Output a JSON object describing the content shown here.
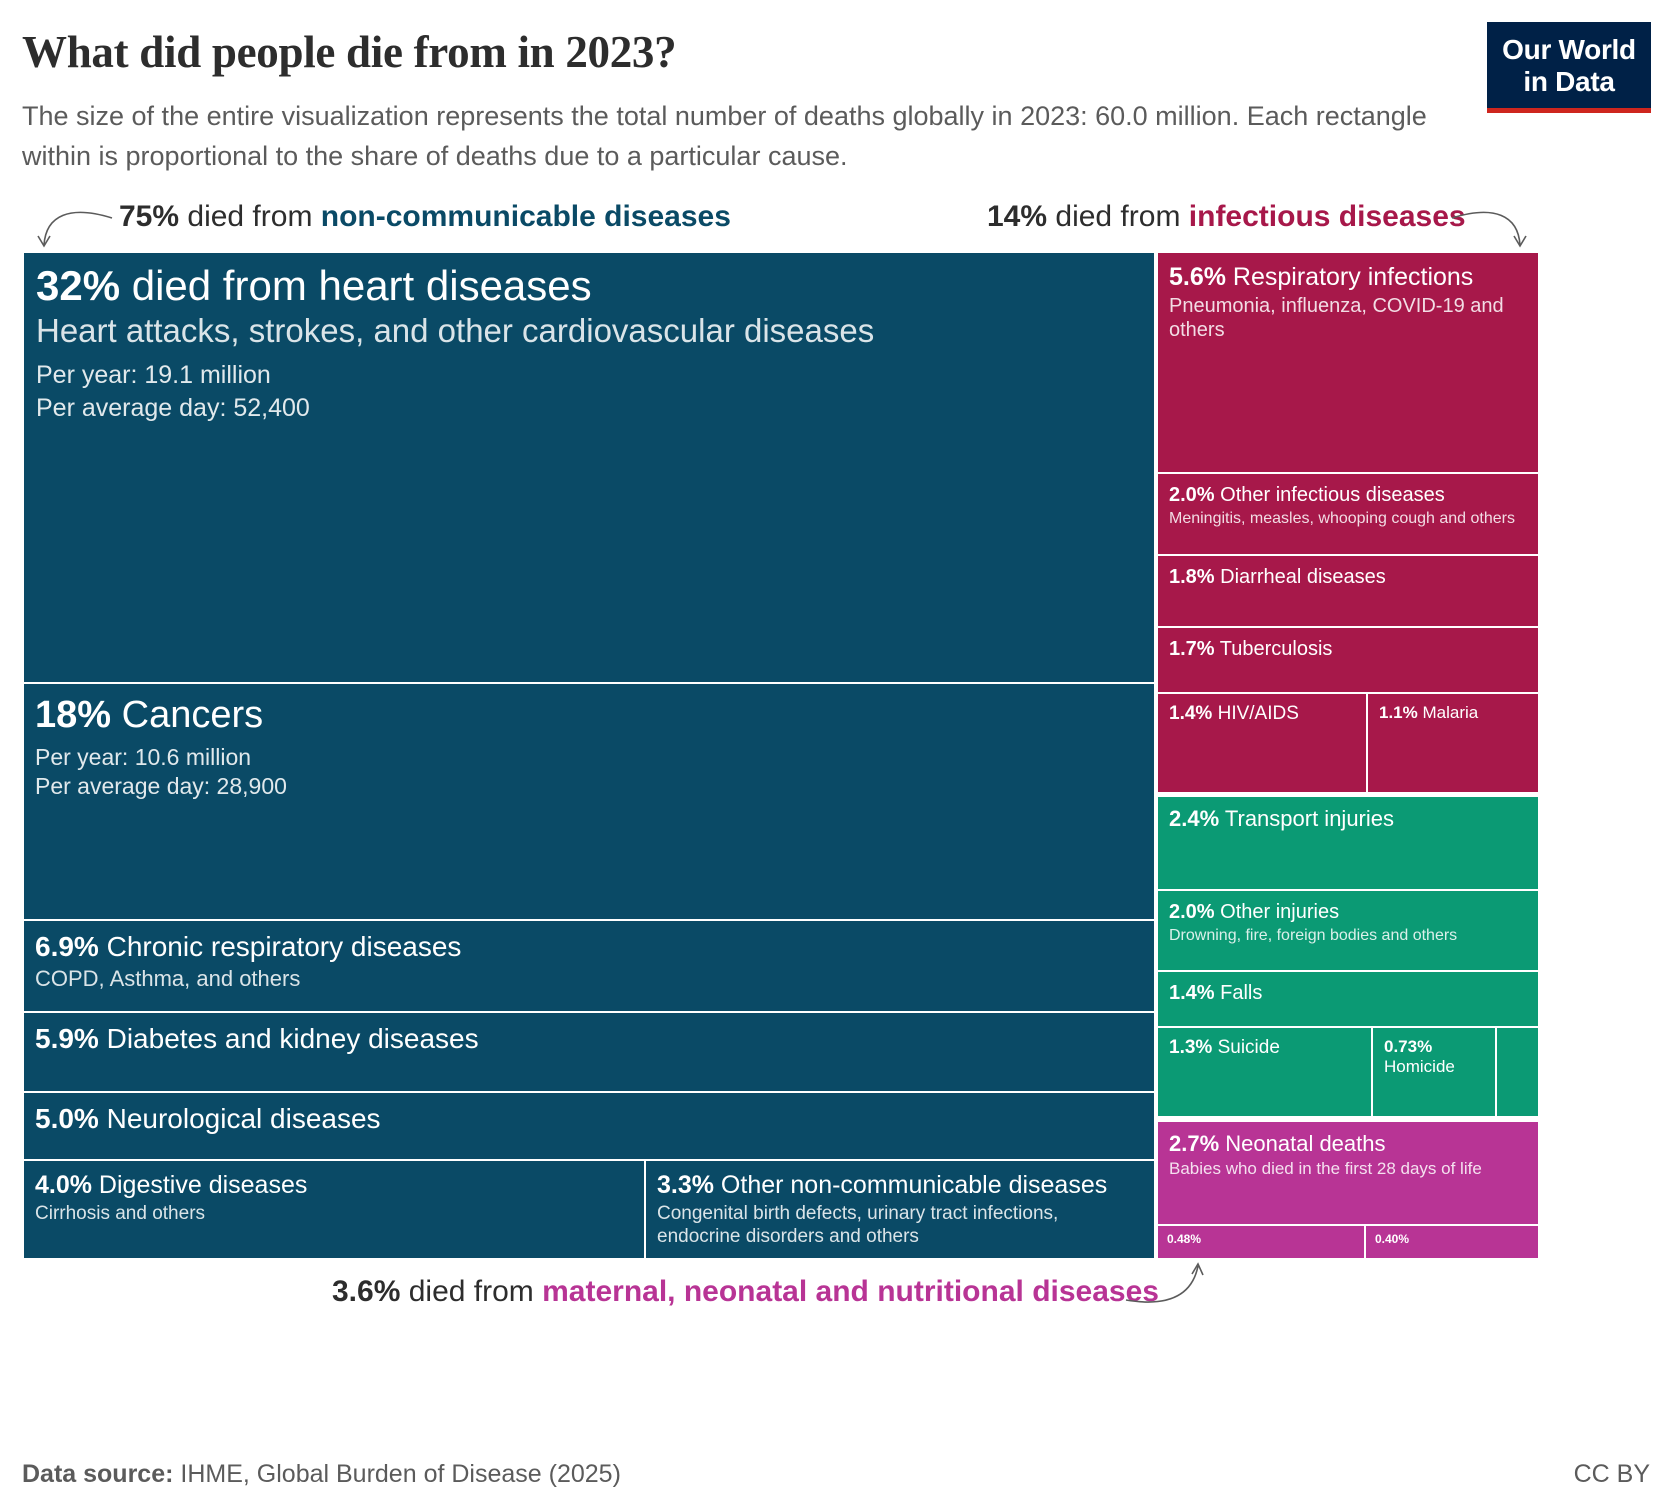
{
  "header": {
    "title": "What did people die from in 2023?",
    "subtitle": "The size of the entire visualization represents the total number of deaths globally in 2023: 60.0 million. Each rectangle within is proportional to the share of deaths due to a particular cause.",
    "logo_line1": "Our World",
    "logo_line2": "in Data"
  },
  "annotations": {
    "ncd": {
      "pct": "75%",
      "mid": " died from ",
      "cat": "non-communicable diseases"
    },
    "inf": {
      "pct": "14%",
      "mid": " died from ",
      "cat": "infectious diseases"
    },
    "mat": {
      "pct": "3.6%",
      "mid": " died from ",
      "cat": "maternal, neonatal and nutritional diseases"
    }
  },
  "footer": {
    "source_label": "Data source:",
    "source_text": " IHME, Global Burden of Disease (2025)",
    "license": "CC BY"
  },
  "colors": {
    "ncd": "#0a4a66",
    "infectious": "#a7184a",
    "injuries": "#0b9a74",
    "maternal": "#b83495",
    "ncd_text": "#0a4a66",
    "infectious_text": "#a7184a",
    "maternal_text": "#b83495"
  },
  "chart_data": {
    "type": "treemap",
    "total_deaths": "60.0 million",
    "groups": [
      {
        "name": "non-communicable diseases",
        "share_pct": 75
      },
      {
        "name": "infectious diseases",
        "share_pct": 14
      },
      {
        "name": "maternal, neonatal and nutritional diseases",
        "share_pct": 3.6
      }
    ],
    "cells": [
      {
        "group": "ncd",
        "pct": "32%",
        "label": " died from heart diseases",
        "desc": "Heart attacks, strokes, and other cardiovascular diseases",
        "per_year": "Per year: 19.1 million",
        "per_day": "Per average day: 52,400",
        "share_pct": 32
      },
      {
        "group": "ncd",
        "pct": "18%",
        "label": " Cancers",
        "per_year": "Per year: 10.6 million",
        "per_day": "Per average day: 28,900",
        "share_pct": 18
      },
      {
        "group": "ncd",
        "pct": "6.9%",
        "label": " Chronic respiratory diseases",
        "desc": "COPD, Asthma, and others",
        "share_pct": 6.9
      },
      {
        "group": "ncd",
        "pct": "5.9%",
        "label": " Diabetes and kidney diseases",
        "share_pct": 5.9
      },
      {
        "group": "ncd",
        "pct": "5.0%",
        "label": " Neurological diseases",
        "share_pct": 5.0
      },
      {
        "group": "ncd",
        "pct": "4.0%",
        "label": " Digestive diseases",
        "desc": "Cirrhosis and others",
        "share_pct": 4.0
      },
      {
        "group": "ncd",
        "pct": "3.3%",
        "label": " Other non-communicable diseases",
        "desc": "Congenital birth defects, urinary tract infections, endocrine disorders and others",
        "share_pct": 3.3
      },
      {
        "group": "infectious",
        "pct": "5.6%",
        "label": " Respiratory infections",
        "desc": "Pneumonia, influenza, COVID-19 and others",
        "share_pct": 5.6
      },
      {
        "group": "infectious",
        "pct": "2.0%",
        "label": " Other infectious diseases",
        "desc": "Meningitis, measles, whooping cough and others",
        "share_pct": 2.0
      },
      {
        "group": "infectious",
        "pct": "1.8%",
        "label": " Diarrheal diseases",
        "share_pct": 1.8
      },
      {
        "group": "infectious",
        "pct": "1.7%",
        "label": " Tuberculosis",
        "share_pct": 1.7
      },
      {
        "group": "infectious",
        "pct": "1.4%",
        "label": " HIV/AIDS",
        "share_pct": 1.4
      },
      {
        "group": "infectious",
        "pct": "1.1%",
        "label": " Malaria",
        "share_pct": 1.1
      },
      {
        "group": "injuries",
        "pct": "2.4%",
        "label": " Transport injuries",
        "share_pct": 2.4
      },
      {
        "group": "injuries",
        "pct": "2.0%",
        "label": " Other injuries",
        "desc": "Drowning, fire, foreign bodies and others",
        "share_pct": 2.0
      },
      {
        "group": "injuries",
        "pct": "1.4%",
        "label": " Falls",
        "share_pct": 1.4
      },
      {
        "group": "injuries",
        "pct": "1.3%",
        "label": " Suicide",
        "share_pct": 1.3
      },
      {
        "group": "injuries",
        "pct": "0.73%",
        "label": "Homicide",
        "share_pct": 0.73
      },
      {
        "group": "injuries",
        "pct": "",
        "label": "",
        "share_pct": null
      },
      {
        "group": "maternal",
        "pct": "2.7%",
        "label": " Neonatal deaths",
        "desc": "Babies who died in the first 28 days of life",
        "share_pct": 2.7
      },
      {
        "group": "maternal",
        "pct": "0.48%",
        "label": "",
        "share_pct": 0.48
      },
      {
        "group": "maternal",
        "pct": "0.40%",
        "label": "",
        "share_pct": 0.4
      }
    ]
  }
}
